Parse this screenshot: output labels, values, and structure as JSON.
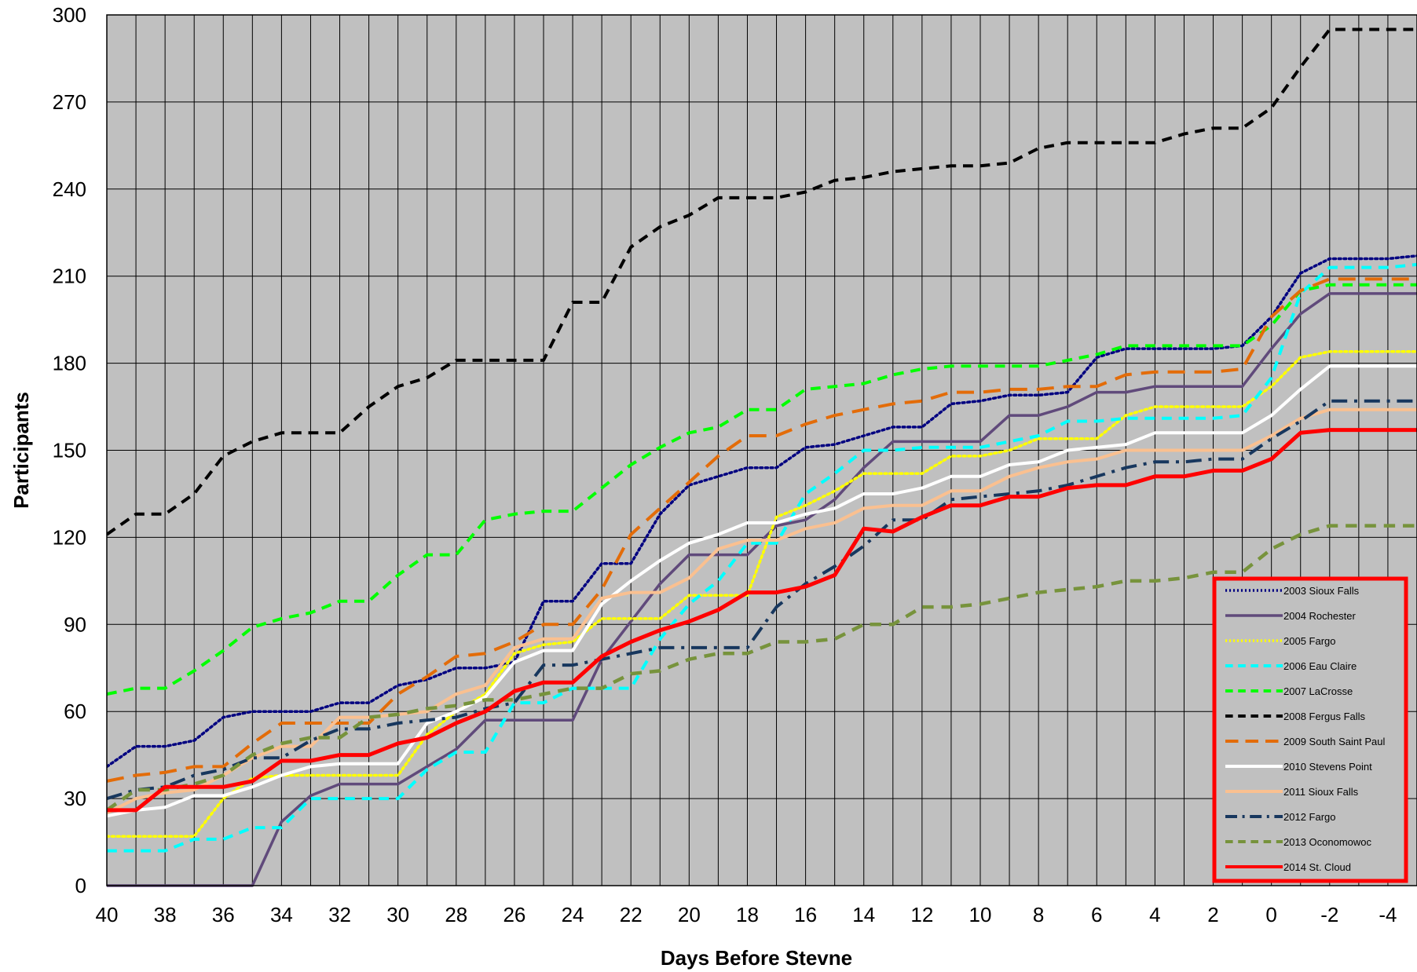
{
  "chart_data": {
    "type": "line",
    "title": "",
    "xlabel": "Days Before Stevne",
    "ylabel": "Participants",
    "xlim": [
      40,
      -5
    ],
    "ylim": [
      0,
      300
    ],
    "x_ticks": [
      40,
      38,
      36,
      34,
      32,
      30,
      28,
      26,
      24,
      22,
      20,
      18,
      16,
      14,
      12,
      10,
      8,
      6,
      4,
      2,
      0,
      -2,
      -4
    ],
    "x_tick_labels": [
      "40",
      "38",
      "36",
      "34",
      "32",
      "30",
      "28",
      "26",
      "24",
      "22",
      "20",
      "18",
      "16",
      "14",
      "12",
      "10",
      "8",
      "6",
      "4",
      "2",
      "0",
      "-2",
      "-4"
    ],
    "y_ticks": [
      0,
      30,
      60,
      90,
      120,
      150,
      180,
      210,
      240,
      270,
      300
    ],
    "y_tick_labels": [
      "0",
      "30",
      "60",
      "90",
      "120",
      "150",
      "180",
      "210",
      "240",
      "270",
      "300"
    ],
    "grid": true,
    "x_reversed": true,
    "plot_background": "#c0c0c0",
    "legend_placement": "bottom-right",
    "x": [
      40,
      39,
      38,
      37,
      36,
      35,
      34,
      33,
      32,
      31,
      30,
      29,
      28,
      27,
      26,
      25,
      24,
      23,
      22,
      21,
      20,
      19,
      18,
      17,
      16,
      15,
      14,
      13,
      12,
      11,
      10,
      9,
      8,
      7,
      6,
      5,
      4,
      3,
      2,
      1,
      0,
      -1,
      -2,
      -3,
      -4,
      -5
    ],
    "series": [
      {
        "name": "2003 Sioux Falls",
        "color": "#000080",
        "dash": "dot",
        "width": 3.5,
        "values": [
          41,
          48,
          48,
          50,
          58,
          60,
          60,
          60,
          63,
          63,
          69,
          71,
          75,
          75,
          77,
          98,
          98,
          111,
          111,
          128,
          138,
          141,
          144,
          144,
          151,
          152,
          155,
          158,
          158,
          166,
          167,
          169,
          169,
          170,
          182,
          185,
          185,
          185,
          185,
          186,
          196,
          211,
          216,
          216,
          216,
          217
        ]
      },
      {
        "name": "2004 Rochester",
        "color": "#604a7b",
        "dash": "solid",
        "width": 3.5,
        "values": [
          0,
          0,
          0,
          0,
          0,
          0,
          22,
          31,
          35,
          35,
          35,
          41,
          47,
          57,
          57,
          57,
          57,
          78,
          91,
          104,
          114,
          114,
          114,
          124,
          126,
          133,
          144,
          153,
          153,
          153,
          153,
          162,
          162,
          165,
          170,
          170,
          172,
          172,
          172,
          172,
          185,
          197,
          204,
          204,
          204,
          204
        ]
      },
      {
        "name": "2005 Fargo",
        "color": "#ffff00",
        "dash": "dot",
        "width": 3.5,
        "values": [
          17,
          17,
          17,
          17,
          30,
          37,
          38,
          38,
          38,
          38,
          38,
          52,
          60,
          66,
          80,
          83,
          84,
          92,
          92,
          92,
          100,
          100,
          100,
          127,
          131,
          136,
          142,
          142,
          142,
          148,
          148,
          150,
          154,
          154,
          154,
          162,
          165,
          165,
          165,
          165,
          172,
          182,
          184,
          184,
          184,
          184
        ]
      },
      {
        "name": "2006 Eau Claire",
        "color": "#00ffff",
        "dash": "dash",
        "width": 4,
        "values": [
          12,
          12,
          12,
          16,
          16,
          20,
          20,
          30,
          30,
          30,
          30,
          40,
          46,
          46,
          63,
          63,
          68,
          68,
          68,
          85,
          97,
          105,
          118,
          118,
          135,
          142,
          150,
          150,
          151,
          151,
          151,
          153,
          155,
          160,
          160,
          161,
          161,
          161,
          161,
          162,
          175,
          204,
          213,
          213,
          213,
          214
        ]
      },
      {
        "name": "2007 LaCrosse",
        "color": "#00ff00",
        "dash": "dash",
        "width": 4,
        "values": [
          66,
          68,
          68,
          74,
          81,
          89,
          92,
          94,
          98,
          98,
          107,
          114,
          114,
          126,
          128,
          129,
          129,
          137,
          145,
          151,
          156,
          158,
          164,
          164,
          171,
          172,
          173,
          176,
          178,
          179,
          179,
          179,
          179,
          181,
          183,
          186,
          186,
          186,
          186,
          186,
          193,
          205,
          207,
          207,
          207,
          207
        ]
      },
      {
        "name": "2008 Fergus Falls",
        "color": "#000000",
        "dash": "dash",
        "width": 4,
        "values": [
          121,
          128,
          128,
          135,
          148,
          153,
          156,
          156,
          156,
          165,
          172,
          175,
          181,
          181,
          181,
          181,
          201,
          201,
          220,
          227,
          231,
          237,
          237,
          237,
          239,
          243,
          244,
          246,
          247,
          248,
          248,
          249,
          254,
          256,
          256,
          256,
          256,
          259,
          261,
          261,
          268,
          282,
          295,
          295,
          295,
          295
        ]
      },
      {
        "name": "2009 South Saint Paul",
        "color": "#e36c09",
        "dash": "longdash",
        "width": 4,
        "values": [
          36,
          38,
          39,
          41,
          41,
          49,
          56,
          56,
          56,
          56,
          66,
          72,
          79,
          80,
          84,
          90,
          90,
          102,
          121,
          130,
          139,
          148,
          155,
          155,
          159,
          162,
          164,
          166,
          167,
          170,
          170,
          171,
          171,
          172,
          172,
          176,
          177,
          177,
          177,
          178,
          196,
          205,
          209,
          209,
          209,
          209
        ]
      },
      {
        "name": "2010 Stevens Point",
        "color": "#ffffff",
        "dash": "solid",
        "width": 4,
        "values": [
          24,
          26,
          27,
          31,
          31,
          34,
          38,
          41,
          42,
          42,
          42,
          56,
          60,
          65,
          77,
          81,
          81,
          97,
          105,
          112,
          118,
          121,
          125,
          125,
          128,
          130,
          135,
          135,
          137,
          141,
          141,
          145,
          146,
          150,
          151,
          152,
          156,
          156,
          156,
          156,
          162,
          171,
          179,
          179,
          179,
          179
        ]
      },
      {
        "name": "2011 Sioux Falls",
        "color": "#fac090",
        "dash": "solid",
        "width": 4,
        "values": [
          25,
          30,
          32,
          33,
          38,
          44,
          48,
          48,
          58,
          58,
          59,
          60,
          66,
          69,
          82,
          85,
          85,
          99,
          101,
          101,
          106,
          116,
          119,
          119,
          123,
          125,
          130,
          131,
          131,
          136,
          136,
          141,
          144,
          146,
          147,
          150,
          150,
          150,
          150,
          150,
          155,
          161,
          164,
          164,
          164,
          164
        ]
      },
      {
        "name": "2012 Fargo",
        "color": "#17375e",
        "dash": "dashdot",
        "width": 4,
        "values": [
          30,
          33,
          34,
          38,
          40,
          44,
          44,
          50,
          54,
          54,
          56,
          57,
          58,
          61,
          63,
          76,
          76,
          78,
          80,
          82,
          82,
          82,
          82,
          96,
          104,
          110,
          117,
          126,
          126,
          133,
          134,
          135,
          136,
          138,
          141,
          144,
          146,
          146,
          147,
          147,
          154,
          160,
          167,
          167,
          167,
          167
        ]
      },
      {
        "name": "2013 Oconomowoc",
        "color": "#77933c",
        "dash": "dash",
        "width": 4.5,
        "values": [
          26,
          33,
          33,
          35,
          38,
          45,
          49,
          51,
          51,
          58,
          59,
          61,
          62,
          64,
          64,
          66,
          68,
          68,
          73,
          74,
          78,
          80,
          80,
          84,
          84,
          85,
          90,
          90,
          96,
          96,
          97,
          99,
          101,
          102,
          103,
          105,
          105,
          106,
          108,
          108,
          116,
          121,
          124,
          124,
          124,
          124
        ]
      },
      {
        "name": "2014 St. Cloud",
        "color": "#ff0000",
        "dash": "solid",
        "width": 5,
        "values": [
          26,
          26,
          34,
          34,
          34,
          36,
          43,
          43,
          45,
          45,
          49,
          51,
          56,
          60,
          67,
          70,
          70,
          79,
          84,
          88,
          91,
          95,
          101,
          101,
          103,
          107,
          123,
          122,
          127,
          131,
          131,
          134,
          134,
          137,
          138,
          138,
          141,
          141,
          143,
          143,
          147,
          156,
          157,
          157,
          157,
          157
        ]
      }
    ]
  }
}
